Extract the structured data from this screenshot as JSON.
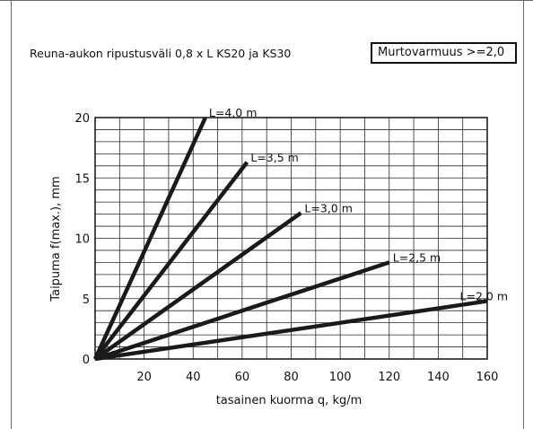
{
  "header": {
    "title": "Reuna-aukon ripustusväli 0,8 x L   KS20 ja KS30",
    "safety_factor": "Murtovarmuus >=2,0"
  },
  "chart_data": {
    "type": "line",
    "title": "",
    "xlabel": "tasainen kuorma q, kg/m",
    "ylabel": "Taipuma  f(max.), mm",
    "xlim": [
      0,
      160
    ],
    "ylim": [
      0,
      20
    ],
    "grid": true,
    "x_ticks": [
      20,
      40,
      60,
      80,
      100,
      120,
      140,
      160
    ],
    "y_ticks": [
      0,
      5,
      10,
      15,
      20
    ],
    "series": [
      {
        "name": "L=4,0 m",
        "x": [
          0,
          45
        ],
        "y": [
          0,
          20
        ]
      },
      {
        "name": "L=3,5 m",
        "x": [
          0,
          62
        ],
        "y": [
          0,
          16.3
        ]
      },
      {
        "name": "L=3,0 m",
        "x": [
          0,
          84
        ],
        "y": [
          0,
          12.1
        ]
      },
      {
        "name": "L=2,5 m",
        "x": [
          0,
          120
        ],
        "y": [
          0,
          8
        ]
      },
      {
        "name": "L=2,0 m",
        "x": [
          0,
          160
        ],
        "y": [
          0,
          4.8
        ]
      }
    ]
  }
}
